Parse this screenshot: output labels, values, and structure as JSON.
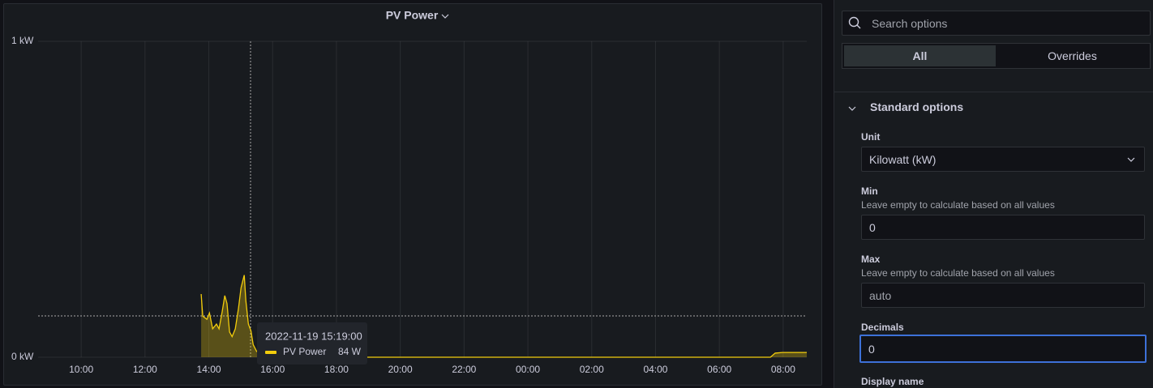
{
  "chart_data": {
    "type": "line",
    "title": "PV Power",
    "x": [
      13.76,
      13.81,
      13.94,
      14.02,
      14.12,
      14.24,
      14.32,
      14.42,
      14.5,
      14.57,
      14.65,
      14.73,
      14.83,
      14.93,
      15.01,
      15.11,
      15.16,
      15.24,
      15.32,
      15.39,
      15.49,
      15.59,
      15.72,
      31.6,
      31.75,
      31.98,
      32.74
    ],
    "series": [
      {
        "name": "PV Power",
        "color": "#f2cc0c",
        "values": [
          0.2,
          0.13,
          0.12,
          0.14,
          0.09,
          0.105,
          0.09,
          0.145,
          0.195,
          0.17,
          0.08,
          0.065,
          0.09,
          0.155,
          0.22,
          0.26,
          0.18,
          0.105,
          0.084,
          0.04,
          0.02,
          0.008,
          0,
          0,
          0.013,
          0.015,
          0.015
        ]
      }
    ],
    "xlim": [
      8.65,
      32.74
    ],
    "xticks": [
      {
        "value": 10,
        "label": "10:00"
      },
      {
        "value": 12,
        "label": "12:00"
      },
      {
        "value": 14,
        "label": "14:00"
      },
      {
        "value": 16,
        "label": "16:00"
      },
      {
        "value": 18,
        "label": "18:00"
      },
      {
        "value": 20,
        "label": "20:00"
      },
      {
        "value": 22,
        "label": "22:00"
      },
      {
        "value": 24,
        "label": "00:00"
      },
      {
        "value": 26,
        "label": "02:00"
      },
      {
        "value": 28,
        "label": "04:00"
      },
      {
        "value": 30,
        "label": "06:00"
      },
      {
        "value": 32,
        "label": "08:00"
      }
    ],
    "ylim": [
      0,
      1
    ],
    "yticks": [
      {
        "value": 0,
        "label": "0 kW"
      },
      {
        "value": 1,
        "label": "1 kW"
      }
    ],
    "grid": true,
    "tooltip": {
      "time": "2022-11-19 15:19:00",
      "value": "84 W"
    }
  },
  "options": {
    "search_placeholder": "Search options",
    "tabs": [
      "All",
      "Overrides"
    ],
    "section": "Standard options",
    "unit_label": "Unit",
    "unit_value": "Kilowatt (kW)",
    "min_label": "Min",
    "min_description": "Leave empty to calculate based on all values",
    "min_value": "0",
    "max_label": "Max",
    "max_description": "Leave empty to calculate based on all values",
    "max_placeholder": "auto",
    "decimals_label": "Decimals",
    "decimals_value": "0",
    "display_name_label": "Display name"
  }
}
